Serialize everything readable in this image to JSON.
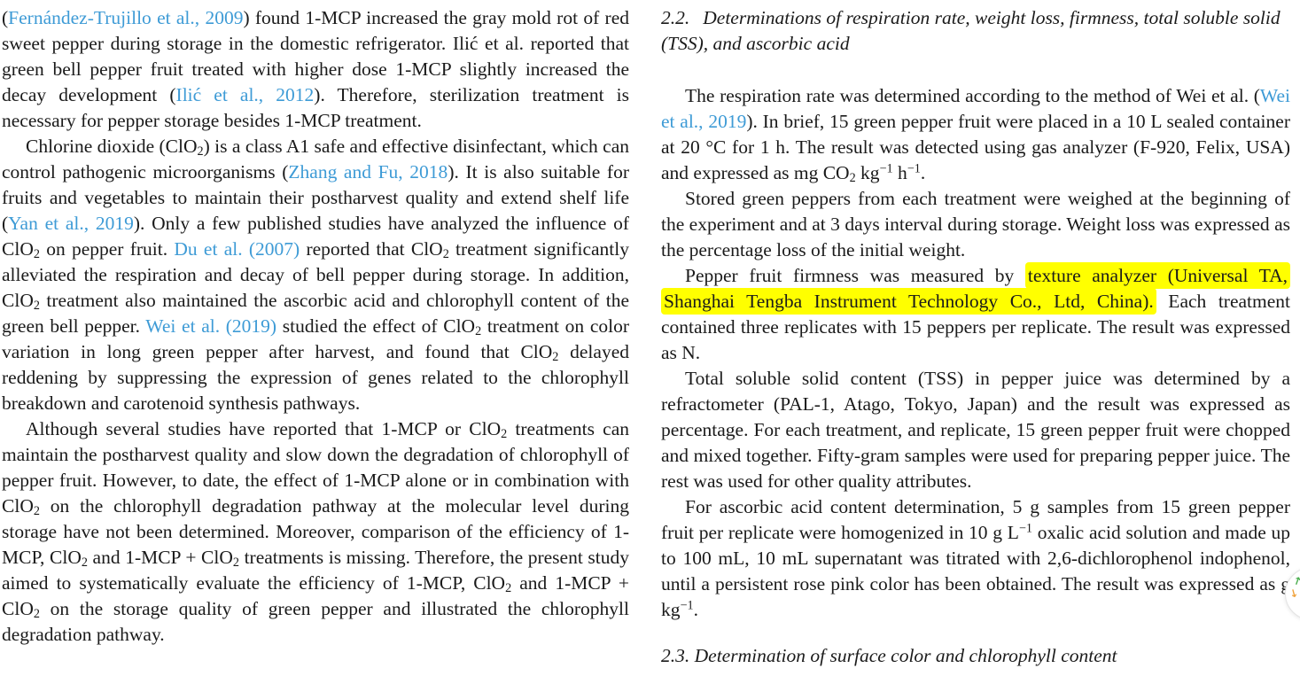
{
  "colors": {
    "text": "#1a1a1a",
    "link": "#3e9bd6",
    "highlight": "#ffff00",
    "background": "#ffffff",
    "scroll_up_arrow": "#4caf50",
    "scroll_down_arrow": "#f0a23c"
  },
  "left_column": {
    "paragraphs": [
      {
        "indent": false,
        "segments": [
          {
            "t": "(",
            "s": "plain"
          },
          {
            "t": "Fernández-Trujillo et al., 2009",
            "s": "link"
          },
          {
            "t": ") found 1-MCP increased the gray mold rot of red sweet pepper during storage in the domestic refrigerator. Ilić et al. reported that green bell pepper fruit treated with higher dose 1-MCP slightly increased the decay development (",
            "s": "plain"
          },
          {
            "t": "Ilić et al., 2012",
            "s": "link"
          },
          {
            "t": "). Therefore, sterilization treatment is necessary for pepper storage besides 1-MCP treatment.",
            "s": "plain"
          }
        ]
      },
      {
        "indent": true,
        "segments": [
          {
            "t": "Chlorine dioxide (ClO",
            "s": "plain"
          },
          {
            "t": "2",
            "s": "sub"
          },
          {
            "t": ") is a class A1 safe and effective disinfectant, which can control pathogenic microorganisms (",
            "s": "plain"
          },
          {
            "t": "Zhang and Fu, 2018",
            "s": "link"
          },
          {
            "t": "). It is also suitable for fruits and vegetables to maintain their postharvest quality and extend shelf life (",
            "s": "plain"
          },
          {
            "t": "Yan et al., 2019",
            "s": "link"
          },
          {
            "t": "). Only a few published studies have analyzed the influence of ClO",
            "s": "plain"
          },
          {
            "t": "2",
            "s": "sub"
          },
          {
            "t": " on pepper fruit. ",
            "s": "plain"
          },
          {
            "t": "Du et al. (2007)",
            "s": "link"
          },
          {
            "t": " reported that ClO",
            "s": "plain"
          },
          {
            "t": "2",
            "s": "sub"
          },
          {
            "t": " treatment significantly alleviated the respiration and decay of bell pepper during storage. In addition, ClO",
            "s": "plain"
          },
          {
            "t": "2",
            "s": "sub"
          },
          {
            "t": " treatment also maintained the ascorbic acid and chlorophyll content of the green bell pepper. ",
            "s": "plain"
          },
          {
            "t": "Wei et al. (2019)",
            "s": "link"
          },
          {
            "t": " studied the effect of ClO",
            "s": "plain"
          },
          {
            "t": "2",
            "s": "sub"
          },
          {
            "t": " treatment on color variation in long green pepper after harvest, and found that ClO",
            "s": "plain"
          },
          {
            "t": "2",
            "s": "sub"
          },
          {
            "t": " delayed reddening by suppressing the expression of genes related to the chlorophyll breakdown and carotenoid synthesis pathways.",
            "s": "plain"
          }
        ]
      },
      {
        "indent": true,
        "segments": [
          {
            "t": "Although several studies have reported that 1-MCP or ClO",
            "s": "plain"
          },
          {
            "t": "2",
            "s": "sub"
          },
          {
            "t": " treatments can maintain the postharvest quality and slow down the degradation of chlorophyll of pepper fruit. However, to date, the effect of 1-MCP alone or in combination with ClO",
            "s": "plain"
          },
          {
            "t": "2",
            "s": "sub"
          },
          {
            "t": " on the chlorophyll degradation pathway at the molecular level during storage have not been determined. Moreover, comparison of the efficiency of 1-MCP, ClO",
            "s": "plain"
          },
          {
            "t": "2",
            "s": "sub"
          },
          {
            "t": " and 1-MCP + ClO",
            "s": "plain"
          },
          {
            "t": "2",
            "s": "sub"
          },
          {
            "t": " treatments is missing. Therefore, the present study aimed to systematically evaluate the efficiency of 1-MCP, ClO",
            "s": "plain"
          },
          {
            "t": "2",
            "s": "sub"
          },
          {
            "t": " and 1-MCP + ClO",
            "s": "plain"
          },
          {
            "t": "2",
            "s": "sub"
          },
          {
            "t": " on the storage quality of green pepper and illustrated the chlorophyll degradation pathway.",
            "s": "plain"
          }
        ]
      }
    ]
  },
  "right_column": {
    "heading": {
      "number": "2.2.",
      "text": "Determinations of respiration rate, weight loss, firmness, total soluble solid (TSS), and ascorbic acid"
    },
    "paragraphs": [
      {
        "indent": true,
        "segments": [
          {
            "t": "The respiration rate was determined according to the method of Wei et al. (",
            "s": "plain"
          },
          {
            "t": "Wei et al., 2019",
            "s": "link"
          },
          {
            "t": "). In brief, 15 green pepper fruit were placed in a 10 L sealed container at 20 °C for 1 h. The result was detected using gas analyzer (F-920, Felix, USA) and expressed as mg CO",
            "s": "plain"
          },
          {
            "t": "2",
            "s": "sub"
          },
          {
            "t": " kg",
            "s": "plain"
          },
          {
            "t": "−1",
            "s": "sup"
          },
          {
            "t": " h",
            "s": "plain"
          },
          {
            "t": "−1",
            "s": "sup"
          },
          {
            "t": ".",
            "s": "plain"
          }
        ]
      },
      {
        "indent": true,
        "segments": [
          {
            "t": "Stored green peppers from each treatment were weighed at the beginning of the experiment and at 3 days interval during storage. Weight loss was expressed as the percentage loss of the initial weight.",
            "s": "plain"
          }
        ]
      },
      {
        "indent": true,
        "segments": [
          {
            "t": "Pepper fruit firmness was measured by ",
            "s": "plain"
          },
          {
            "t": "texture analyzer (Universal TA, Shanghai Tengba Instrument Technology Co., Ltd, China).",
            "s": "hl"
          },
          {
            "t": " Each treatment contained three replicates with 15 peppers per replicate. The result was expressed as N.",
            "s": "plain"
          }
        ]
      },
      {
        "indent": true,
        "segments": [
          {
            "t": "Total soluble solid content (TSS) in pepper juice was determined by a refractometer (PAL-1, Atago, Tokyo, Japan) and the result was expressed as percentage. For each treatment, and replicate, 15 green pepper fruit were chopped and mixed together. Fifty-gram samples were used for preparing pepper juice. The rest was used for other quality attributes.",
            "s": "plain"
          }
        ]
      },
      {
        "indent": true,
        "segments": [
          {
            "t": "For ascorbic acid content determination, 5 g samples from 15 green pepper fruit per replicate were homogenized in 10 g L",
            "s": "plain"
          },
          {
            "t": "−1",
            "s": "sup"
          },
          {
            "t": " oxalic acid solution and made up to 100 mL, 10 mL supernatant was titrated with 2,6-dichlorophenol indophenol, until a persistent rose pink color has been obtained. The result was expressed as g kg",
            "s": "plain"
          },
          {
            "t": "−1",
            "s": "sup"
          },
          {
            "t": ".",
            "s": "plain"
          }
        ]
      }
    ],
    "clipped_next_section": "2.3.  Determination of surface color and chlorophyll content"
  },
  "widgets": {
    "scroll_buttons": {
      "up_icon": "↑",
      "down_icon": "↓"
    }
  }
}
